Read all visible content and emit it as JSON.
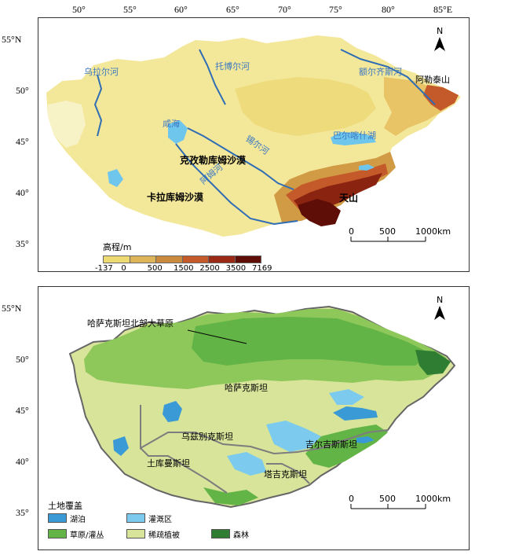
{
  "top_axis": {
    "lon_labels": [
      "50°",
      "55°",
      "60°",
      "65°",
      "70°",
      "75°",
      "80°",
      "85°E"
    ],
    "lat_labels": [
      "55°N",
      "50°",
      "45°",
      "40°",
      "35°"
    ]
  },
  "bottom_axis": {
    "lat_labels": [
      "55°N",
      "50°",
      "45°",
      "40°",
      "35°"
    ]
  },
  "map1": {
    "labels": {
      "ural_river": "乌拉尔河",
      "tobol_river": "托博尔河",
      "irtysh_river": "额尔齐斯河",
      "altai": "阿勒泰山",
      "aral_sea": "咸海",
      "syr_darya": "锡尔河",
      "balkhash": "巴尔喀什湖",
      "kyzylkum": "克孜勒库姆沙漠",
      "amu_darya": "阿姆河",
      "karakum": "卡拉库姆沙漠",
      "tianshan": "天山"
    },
    "north": "N",
    "scale": {
      "t0": "0",
      "t1": "500",
      "t2": "1000km"
    },
    "legend": {
      "title": "高程/m",
      "values": [
        "-137",
        "0",
        "500",
        "1500",
        "2500",
        "3500",
        "7169"
      ],
      "colors": [
        "#f7f1b4",
        "#eeda72",
        "#ddb457",
        "#c98a3d",
        "#c45a2a",
        "#9a2a16",
        "#5e0e06"
      ]
    }
  },
  "map2": {
    "labels": {
      "steppe": "哈萨克斯坦北部大草原",
      "kazakhstan": "哈萨克斯坦",
      "uzbekistan": "乌兹别克斯坦",
      "kyrgyzstan": "吉尔吉斯斯坦",
      "turkmenistan": "土库曼斯坦",
      "tajikistan": "塔吉克斯坦"
    },
    "north": "N",
    "scale": {
      "t0": "0",
      "t1": "500",
      "t2": "1000km"
    },
    "legend": {
      "title": "土地覆盖",
      "items": [
        {
          "label": "湖泊",
          "color": "#3a9ad6"
        },
        {
          "label": "灌溉区",
          "color": "#7ccbee"
        },
        {
          "label": "草原/灌丛",
          "color": "#63b446"
        },
        {
          "label": "稀疏植被",
          "color": "#d7e49a"
        },
        {
          "label": "森林",
          "color": "#2e7d32"
        }
      ]
    }
  }
}
